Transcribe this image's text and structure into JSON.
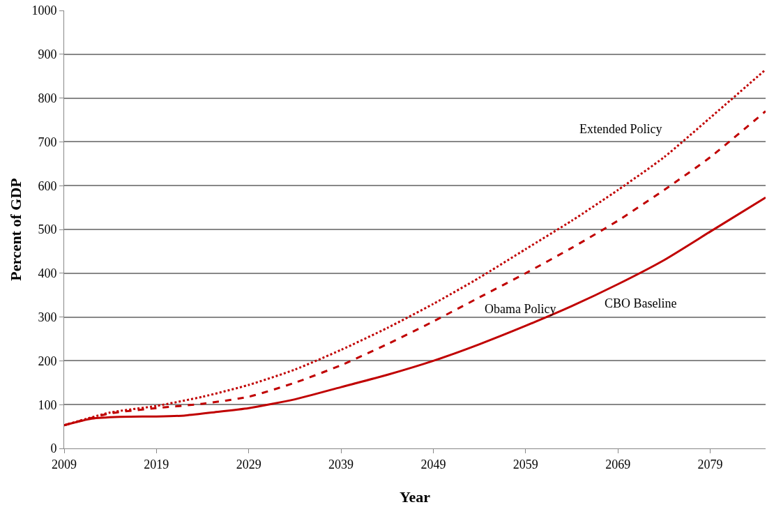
{
  "chart_data": {
    "type": "line",
    "xlabel": "Year",
    "ylabel": "Percent of GDP",
    "xlim": [
      2009,
      2085
    ],
    "xticks": [
      2009,
      2019,
      2029,
      2039,
      2049,
      2059,
      2069,
      2079
    ],
    "ylim": [
      0,
      1000
    ],
    "yticks": [
      0,
      100,
      200,
      300,
      400,
      500,
      600,
      700,
      800,
      900,
      1000
    ],
    "grid": "y",
    "legend": false,
    "series": [
      {
        "name": "CBO Baseline",
        "color": "#c00000",
        "line_style": "solid",
        "x": [
          2009,
          2012,
          2015,
          2019,
          2022,
          2025,
          2029,
          2034,
          2039,
          2044,
          2049,
          2054,
          2059,
          2064,
          2069,
          2074,
          2079,
          2085
        ],
        "values": [
          53,
          68,
          72,
          73,
          75,
          82,
          92,
          112,
          140,
          168,
          200,
          238,
          280,
          325,
          375,
          430,
          495,
          573
        ]
      },
      {
        "name": "Obama Policy",
        "color": "#c00000",
        "line_style": "dashed",
        "x": [
          2009,
          2014,
          2019,
          2024,
          2029,
          2034,
          2039,
          2044,
          2049,
          2054,
          2059,
          2064,
          2069,
          2074,
          2079,
          2085
        ],
        "values": [
          53,
          80,
          92,
          102,
          118,
          150,
          190,
          238,
          290,
          345,
          400,
          458,
          520,
          590,
          665,
          770
        ]
      },
      {
        "name": "Extended Policy",
        "color": "#c00000",
        "line_style": "dotted",
        "x": [
          2009,
          2014,
          2019,
          2024,
          2029,
          2034,
          2039,
          2044,
          2049,
          2054,
          2059,
          2064,
          2069,
          2074,
          2079,
          2085
        ],
        "values": [
          53,
          82,
          97,
          118,
          145,
          180,
          225,
          275,
          330,
          390,
          455,
          520,
          590,
          665,
          755,
          865
        ]
      }
    ]
  }
}
